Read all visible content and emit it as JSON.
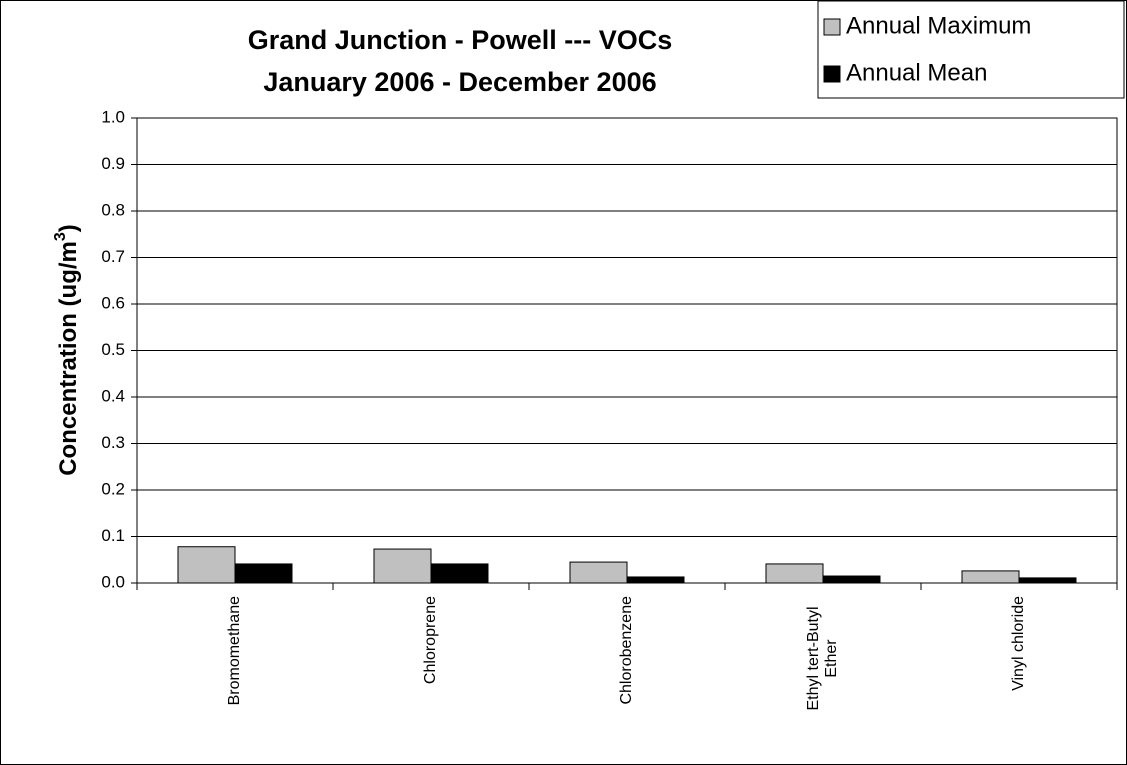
{
  "chart_data": {
    "type": "bar",
    "title": [
      "Grand Junction - Powell --- VOCs",
      "January 2006 - December 2006"
    ],
    "ylabel": [
      "Concentration (ug/m",
      "3",
      ")"
    ],
    "categories": [
      "Bromomethane",
      "Chloroprene",
      "Chlorobenzene",
      "Ethyl tert-Butyl Ether",
      "Vinyl chloride"
    ],
    "series": [
      {
        "name": "Annual Maximum",
        "color": "#c0c0c0",
        "values": [
          0.078,
          0.073,
          0.045,
          0.041,
          0.026
        ]
      },
      {
        "name": "Annual Mean",
        "color": "#000000",
        "values": [
          0.041,
          0.041,
          0.013,
          0.015,
          0.011
        ]
      }
    ],
    "ylim": [
      0,
      1
    ],
    "yticks": [
      {
        "value": 0,
        "label": "0.0"
      },
      0.1,
      0.2,
      0.3,
      0.4,
      0.5,
      0.6,
      0.7,
      0.8,
      0.9,
      {
        "value": 1,
        "label": "1.0"
      }
    ],
    "grid": true,
    "legend": "top-right"
  }
}
